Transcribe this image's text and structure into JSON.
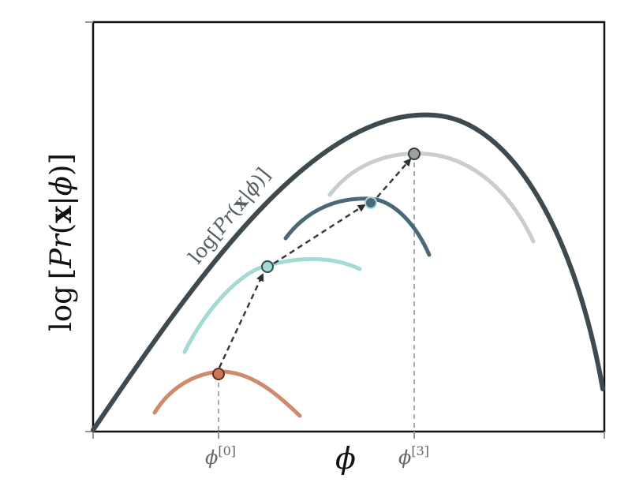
{
  "y_axis_label": {
    "func": "log",
    "lbracket": "[",
    "P": "P",
    "r": "r",
    "lparen": "(",
    "x": "x",
    "bar": "|",
    "phi": "ϕ",
    "rparen": ")",
    "rbracket": "]"
  },
  "x_axis_label": "ϕ",
  "curve_label": {
    "func": "log",
    "lbracket": "[",
    "P": "P",
    "r": "r",
    "lparen": "(",
    "x": "x",
    "bar": "|",
    "phi": "ϕ",
    "rparen": ")",
    "rbracket": "]"
  },
  "ticks": [
    {
      "base": "ϕ",
      "sup": "[0]"
    },
    {
      "base": "ϕ",
      "sup": "[3]"
    }
  ],
  "colors": {
    "main_curve": "#3f4a50",
    "bound_0": "#d08a6b",
    "bound_1": "#a3dad3",
    "bound_2": "#4a6878",
    "bound_3": "#c8cdcf",
    "point_0": "#c47a5a",
    "point_1": "#a3dad3",
    "point_2": "#4a6878",
    "point_3": "#9aa0a3",
    "arrow": "#3a3a3a",
    "dashed_guide": "#aaaaaa"
  }
}
